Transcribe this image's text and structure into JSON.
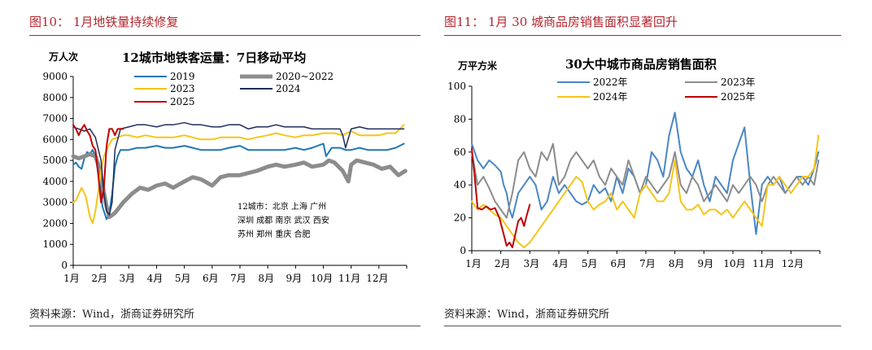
{
  "left_panel": {
    "fig_title": "图10：  1月地铁量持续修复",
    "source": "资料来源：Wind，浙商证券研究所"
  },
  "right_panel": {
    "fig_title": "图11：  1月 30 城商品房销售面积显著回升",
    "source": "资料来源：Wind，浙商证券研究所"
  },
  "chart_data": [
    {
      "type": "line",
      "title": "12城市地铁客运量：7日移动平均",
      "ylabel": "万人次",
      "xlabel": "",
      "ylim": [
        0,
        9000
      ],
      "yticks": [
        0,
        1000,
        2000,
        3000,
        4000,
        5000,
        6000,
        7000,
        8000,
        9000
      ],
      "xlim": [
        0,
        12
      ],
      "categories": [
        "1月",
        "2月",
        "3月",
        "4月",
        "5月",
        "6月",
        "7月",
        "8月",
        "9月",
        "10月",
        "11月",
        "12月"
      ],
      "note": [
        "12城市：北京 上海 广州",
        "深圳 成都 南京 武汉 西安",
        "苏州 郑州 重庆 合肥"
      ],
      "grid": false,
      "legend": "top",
      "series": [
        {
          "name": "2019",
          "color": "#1f77b4",
          "width": 2,
          "x": [
            0,
            0.1,
            0.2,
            0.3,
            0.4,
            0.5,
            0.6,
            0.7,
            0.8,
            0.9,
            1.0,
            1.05,
            1.1,
            1.2,
            1.3,
            1.4,
            1.5,
            1.6,
            1.7,
            1.8,
            2.0,
            2.3,
            2.6,
            3.0,
            3.3,
            3.6,
            4.0,
            4.3,
            4.6,
            5.0,
            5.3,
            5.6,
            6.0,
            6.3,
            6.6,
            7.0,
            7.3,
            7.6,
            8.0,
            8.3,
            8.6,
            9.0,
            9.1,
            9.3,
            9.6,
            9.8,
            10.0,
            10.3,
            10.6,
            11.0,
            11.3,
            11.6,
            11.9
          ],
          "y": [
            4800,
            4900,
            4700,
            4600,
            5100,
            5400,
            5300,
            5500,
            5200,
            4400,
            3500,
            2800,
            2600,
            2200,
            2500,
            3400,
            4700,
            5200,
            5500,
            5500,
            5500,
            5600,
            5600,
            5700,
            5600,
            5600,
            5700,
            5600,
            5500,
            5500,
            5500,
            5600,
            5700,
            5500,
            5500,
            5500,
            5500,
            5500,
            5600,
            5500,
            5600,
            5800,
            5200,
            5600,
            5600,
            5500,
            5500,
            5600,
            5500,
            5500,
            5500,
            5600,
            5800
          ]
        },
        {
          "name": "2020~2022",
          "color": "#8c8c8c",
          "width": 5,
          "x": [
            0,
            0.2,
            0.4,
            0.6,
            0.8,
            0.9,
            1.0,
            1.1,
            1.2,
            1.3,
            1.5,
            1.8,
            2.1,
            2.4,
            2.7,
            3.0,
            3.3,
            3.6,
            4.0,
            4.3,
            4.6,
            5.0,
            5.3,
            5.6,
            6.0,
            6.3,
            6.6,
            7.0,
            7.3,
            7.6,
            8.0,
            8.3,
            8.6,
            9.0,
            9.2,
            9.4,
            9.7,
            9.9,
            10.0,
            10.2,
            10.5,
            10.8,
            11.1,
            11.4,
            11.7,
            11.95
          ],
          "y": [
            5200,
            5100,
            5200,
            5300,
            5200,
            4800,
            4200,
            3500,
            2800,
            2300,
            2500,
            3000,
            3400,
            3700,
            3600,
            3800,
            3900,
            3700,
            4000,
            4200,
            4100,
            3800,
            4200,
            4300,
            4300,
            4400,
            4500,
            4700,
            4800,
            4700,
            4800,
            4900,
            4700,
            4800,
            5000,
            4900,
            4500,
            4000,
            4800,
            5000,
            4900,
            4800,
            4600,
            4700,
            4300,
            4500
          ]
        },
        {
          "name": "2023",
          "color": "#f5c518",
          "width": 2,
          "x": [
            0,
            0.1,
            0.2,
            0.3,
            0.45,
            0.6,
            0.7,
            0.8,
            0.9,
            1.0,
            1.1,
            1.2,
            1.4,
            1.6,
            1.8,
            2.0,
            2.3,
            2.6,
            3.0,
            3.3,
            3.6,
            4.0,
            4.3,
            4.6,
            5.0,
            5.3,
            5.6,
            6.0,
            6.3,
            6.6,
            7.0,
            7.3,
            7.6,
            8.0,
            8.3,
            8.6,
            9.0,
            9.2,
            9.4,
            9.7,
            10.0,
            10.3,
            10.6,
            11.0,
            11.3,
            11.6,
            11.9
          ],
          "y": [
            3000,
            3100,
            3400,
            3700,
            3300,
            2300,
            2000,
            2600,
            3500,
            4500,
            5200,
            5500,
            6000,
            6100,
            6200,
            6200,
            6100,
            6200,
            6100,
            6100,
            6100,
            6200,
            6100,
            6000,
            6000,
            6100,
            6100,
            6100,
            6000,
            6100,
            6200,
            6300,
            6200,
            6100,
            6200,
            6200,
            6300,
            6300,
            6300,
            6200,
            6400,
            6200,
            6200,
            6200,
            6300,
            6300,
            6700
          ]
        },
        {
          "name": "2024",
          "color": "#1f2d5c",
          "width": 1.5,
          "x": [
            0,
            0.2,
            0.4,
            0.6,
            0.8,
            1.0,
            1.1,
            1.2,
            1.3,
            1.4,
            1.5,
            1.7,
            2.0,
            2.3,
            2.6,
            3.0,
            3.3,
            3.6,
            4.0,
            4.3,
            4.6,
            5.0,
            5.3,
            5.6,
            6.0,
            6.3,
            6.6,
            7.0,
            7.3,
            7.6,
            8.0,
            8.3,
            8.6,
            9.0,
            9.3,
            9.6,
            9.7,
            9.8,
            10.0,
            10.3,
            10.6,
            11.0,
            11.3,
            11.6,
            11.9
          ],
          "y": [
            6600,
            6500,
            6400,
            6500,
            6100,
            5000,
            3500,
            2600,
            2400,
            3000,
            5500,
            6500,
            6600,
            6700,
            6700,
            6600,
            6700,
            6700,
            6800,
            6700,
            6700,
            6600,
            6600,
            6700,
            6700,
            6500,
            6600,
            6600,
            6700,
            6600,
            6600,
            6600,
            6500,
            6500,
            6500,
            6500,
            6200,
            5600,
            6500,
            6600,
            6500,
            6500,
            6500,
            6500,
            6500
          ]
        },
        {
          "name": "2025",
          "color": "#c00000",
          "width": 2,
          "x": [
            0,
            0.1,
            0.2,
            0.3,
            0.4,
            0.5,
            0.6,
            0.7,
            0.8,
            0.9,
            1.0,
            1.1,
            1.2,
            1.3,
            1.4,
            1.5,
            1.6,
            1.8
          ],
          "y": [
            6700,
            6500,
            6200,
            6500,
            6700,
            6400,
            6200,
            5700,
            5500,
            4300,
            3000,
            3600,
            5700,
            6500,
            6500,
            6200,
            6500,
            6500
          ]
        }
      ]
    },
    {
      "type": "line",
      "title": "30大中城市商品房销售面积",
      "ylabel": "万平方米",
      "xlabel": "",
      "ylim": [
        0,
        100
      ],
      "yticks": [
        0,
        20,
        40,
        60,
        80,
        100
      ],
      "xlim": [
        0,
        12
      ],
      "categories": [
        "1月",
        "2月",
        "3月",
        "4月",
        "5月",
        "6月",
        "7月",
        "8月",
        "9月",
        "10月",
        "11月",
        "12月"
      ],
      "grid": false,
      "legend": "top",
      "series": [
        {
          "name": "2022年",
          "color": "#4a86c5",
          "width": 2,
          "x": [
            0,
            0.2,
            0.4,
            0.6,
            0.8,
            1.0,
            1.1,
            1.2,
            1.3,
            1.4,
            1.6,
            1.8,
            2.0,
            2.2,
            2.4,
            2.6,
            2.8,
            3.0,
            3.2,
            3.4,
            3.6,
            3.8,
            4.0,
            4.2,
            4.4,
            4.6,
            4.8,
            5.0,
            5.2,
            5.4,
            5.6,
            5.8,
            6.0,
            6.2,
            6.4,
            6.6,
            6.8,
            7.0,
            7.2,
            7.4,
            7.6,
            7.8,
            8.0,
            8.2,
            8.4,
            8.6,
            8.8,
            9.0,
            9.2,
            9.4,
            9.6,
            9.8,
            10.0,
            10.2,
            10.4,
            10.6,
            10.8,
            11.0,
            11.2,
            11.4,
            11.6,
            11.8,
            11.95
          ],
          "y": [
            65,
            55,
            50,
            55,
            52,
            48,
            40,
            35,
            25,
            20,
            35,
            40,
            45,
            40,
            25,
            30,
            45,
            35,
            40,
            35,
            30,
            28,
            30,
            40,
            35,
            38,
            30,
            45,
            35,
            50,
            45,
            35,
            40,
            60,
            55,
            45,
            70,
            84,
            60,
            50,
            45,
            55,
            40,
            30,
            45,
            40,
            35,
            55,
            65,
            75,
            40,
            10,
            40,
            45,
            40,
            45,
            35,
            40,
            45,
            45,
            40,
            50,
            60
          ]
        },
        {
          "name": "2023年",
          "color": "#8c8c8c",
          "width": 2,
          "x": [
            0,
            0.2,
            0.4,
            0.6,
            0.8,
            1.0,
            1.2,
            1.4,
            1.6,
            1.8,
            2.0,
            2.2,
            2.4,
            2.6,
            2.8,
            3.0,
            3.2,
            3.4,
            3.6,
            3.8,
            4.0,
            4.2,
            4.4,
            4.6,
            4.8,
            5.0,
            5.2,
            5.4,
            5.6,
            5.8,
            6.0,
            6.2,
            6.4,
            6.6,
            6.8,
            7.0,
            7.2,
            7.4,
            7.6,
            7.8,
            8.0,
            8.2,
            8.4,
            8.6,
            8.8,
            9.0,
            9.2,
            9.4,
            9.6,
            9.8,
            10.0,
            10.2,
            10.4,
            10.6,
            10.8,
            11.0,
            11.2,
            11.4,
            11.6,
            11.8,
            11.95
          ],
          "y": [
            60,
            40,
            45,
            38,
            30,
            25,
            20,
            35,
            55,
            60,
            50,
            45,
            60,
            55,
            65,
            40,
            45,
            55,
            60,
            55,
            50,
            55,
            45,
            40,
            50,
            45,
            40,
            55,
            45,
            35,
            45,
            40,
            35,
            40,
            45,
            60,
            40,
            35,
            45,
            40,
            30,
            35,
            40,
            35,
            30,
            40,
            35,
            40,
            45,
            40,
            30,
            40,
            45,
            40,
            35,
            40,
            45,
            40,
            45,
            40,
            55
          ]
        },
        {
          "name": "2024年",
          "color": "#f5c518",
          "width": 2,
          "x": [
            0,
            0.2,
            0.4,
            0.6,
            0.8,
            1.0,
            1.2,
            1.4,
            1.6,
            1.8,
            2.0,
            2.2,
            2.4,
            2.6,
            2.8,
            3.0,
            3.2,
            3.4,
            3.6,
            3.8,
            4.0,
            4.2,
            4.4,
            4.6,
            4.8,
            5.0,
            5.2,
            5.4,
            5.6,
            5.8,
            6.0,
            6.2,
            6.4,
            6.6,
            6.8,
            7.0,
            7.2,
            7.4,
            7.6,
            7.8,
            8.0,
            8.2,
            8.4,
            8.6,
            8.8,
            9.0,
            9.2,
            9.4,
            9.6,
            9.8,
            10.0,
            10.2,
            10.4,
            10.6,
            10.8,
            11.0,
            11.2,
            11.4,
            11.6,
            11.8,
            11.95
          ],
          "y": [
            30,
            25,
            28,
            25,
            22,
            20,
            15,
            10,
            5,
            2,
            5,
            10,
            15,
            20,
            25,
            30,
            35,
            40,
            45,
            42,
            30,
            25,
            28,
            30,
            35,
            25,
            30,
            25,
            20,
            35,
            40,
            35,
            30,
            30,
            35,
            55,
            30,
            25,
            25,
            28,
            22,
            25,
            25,
            22,
            25,
            20,
            25,
            30,
            25,
            20,
            15,
            40,
            40,
            45,
            40,
            35,
            40,
            45,
            45,
            50,
            70
          ]
        },
        {
          "name": "2025年",
          "color": "#c00000",
          "width": 2,
          "x": [
            0,
            0.1,
            0.2,
            0.35,
            0.5,
            0.65,
            0.8,
            0.95,
            1.1,
            1.2,
            1.3,
            1.4,
            1.5,
            1.6,
            1.7,
            1.8,
            1.9,
            2.0
          ],
          "y": [
            62,
            45,
            26,
            25,
            27,
            25,
            26,
            20,
            10,
            3,
            5,
            2,
            10,
            18,
            20,
            15,
            22,
            28
          ]
        }
      ]
    }
  ]
}
